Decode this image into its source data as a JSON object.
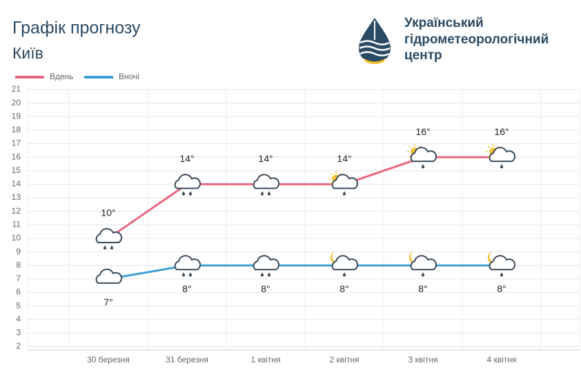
{
  "logo_text": [
    "Український",
    "гідрометеорологічний",
    "центр"
  ],
  "chart_data": {
    "type": "line",
    "title": "Графік прогнозу",
    "subtitle": "Київ",
    "categories": [
      "30 березня",
      "31 березня",
      "1 квітня",
      "2 квітня",
      "3 квітня",
      "4 квітня"
    ],
    "series": [
      {
        "name": "Вдень",
        "color": "#e8667f",
        "values": [
          10,
          14,
          14,
          14,
          16,
          16
        ],
        "value_labels": [
          "10°",
          "14°",
          "14°",
          "14°",
          "16°",
          "16°"
        ]
      },
      {
        "name": "Вночі",
        "color": "#3d9fd3",
        "values": [
          7,
          8,
          8,
          8,
          8,
          8
        ],
        "value_labels": [
          "7°",
          "8°",
          "8°",
          "8°",
          "8°",
          "8°"
        ]
      }
    ],
    "ylim": [
      2,
      21
    ],
    "yticks": [
      2,
      3,
      4,
      5,
      6,
      7,
      8,
      9,
      10,
      11,
      12,
      13,
      14,
      15,
      16,
      17,
      18,
      19,
      20,
      21
    ],
    "grid": true,
    "legend": "top-left"
  }
}
